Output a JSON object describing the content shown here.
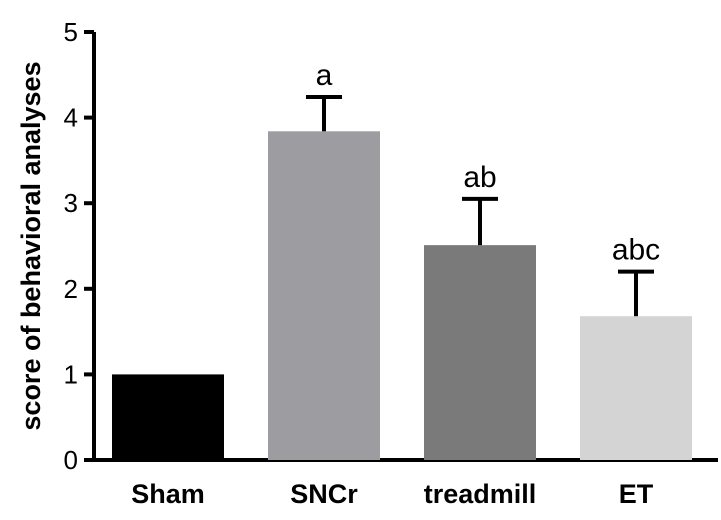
{
  "chart_data": {
    "type": "bar",
    "title": "",
    "xlabel": "",
    "ylabel": "score of behavioral analyses",
    "ylim": [
      0,
      5
    ],
    "yticks": [
      "0",
      "1",
      "2",
      "3",
      "4",
      "5"
    ],
    "categories": [
      "Sham",
      "SNCr",
      "treadmill",
      "ET"
    ],
    "values": [
      1.0,
      3.84,
      2.51,
      1.68
    ],
    "errors": [
      0.0,
      0.4,
      0.54,
      0.52
    ],
    "annotations": [
      "",
      "a",
      "ab",
      "abc"
    ],
    "colors": [
      "#000000",
      "#9d9da1",
      "#7a7a7a",
      "#d4d4d4"
    ],
    "grid": false,
    "legend": "none"
  }
}
